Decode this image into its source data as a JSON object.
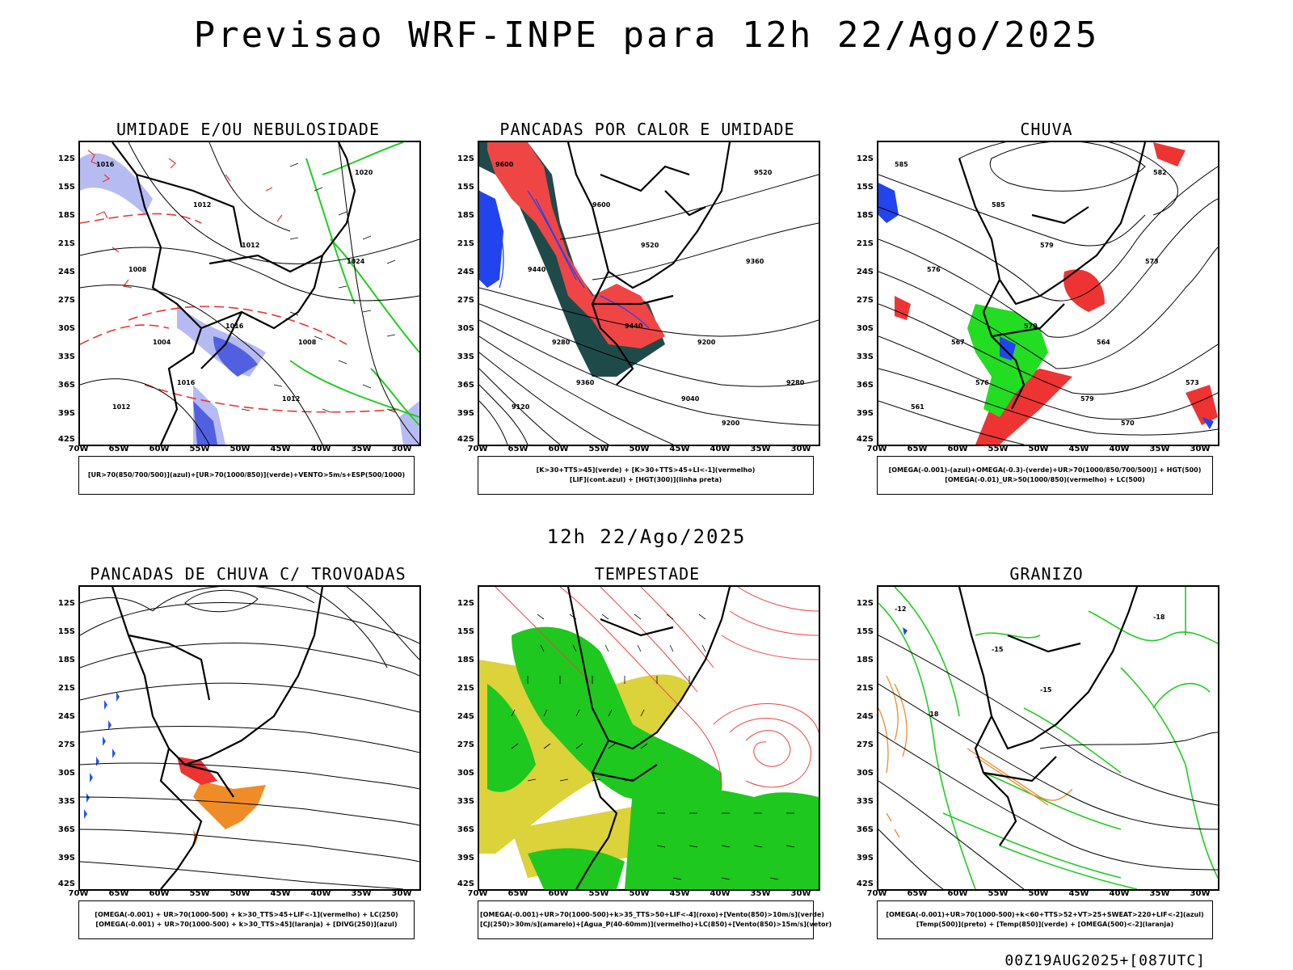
{
  "main_title": "Previsao WRF-INPE  para 12h 22/Ago/2025",
  "mid_title": "12h 22/Ago/2025",
  "footer": "00Z19AUG2025+[087UTC]",
  "lat_labels": [
    "12S",
    "15S",
    "18S",
    "21S",
    "24S",
    "27S",
    "30S",
    "33S",
    "36S",
    "39S",
    "42S"
  ],
  "lon_labels": [
    "70W",
    "65W",
    "60W",
    "55W",
    "50W",
    "45W",
    "40W",
    "35W",
    "30W"
  ],
  "panels": [
    {
      "title": "UMIDADE E/OU NEBULOSIDADE",
      "legend": [
        "[UR>70(850/700/500)](azul)+[UR>70(1000/850)](verde)+VENTO>5m/s+ESP(500/1000)"
      ],
      "contour_labels": [
        "1016",
        "1012",
        "1020",
        "1012",
        "1008",
        "1024",
        "1016",
        "1004",
        "1008",
        "1012",
        "1012",
        "1016"
      ],
      "colors": {
        "blue": "#a9b0f0",
        "green": "#22cc22",
        "red": "#ee3333"
      }
    },
    {
      "title": "PANCADAS POR CALOR E UMIDADE",
      "legend": [
        "[K>30+TTS>45](verde) + [K>30+TTS>45+LI<-1](vermelho)",
        "[LIF](cont.azul) + [HGT(300)](linha preta)"
      ],
      "contour_labels": [
        "9600",
        "9600",
        "9520",
        "9520",
        "9440",
        "9360",
        "9440",
        "9280",
        "9200",
        "9120",
        "9040",
        "9360",
        "9280",
        "9200"
      ],
      "colors": {
        "red": "#f04545",
        "dark": "#1f4a4a",
        "blue": "#2244ee"
      }
    },
    {
      "title": "CHUVA",
      "legend": [
        "[OMEGA(-0.001)-(azul)+OMEGA(-0.3)-(verde)+UR>70(1000/850/700/500)] + HGT(500)",
        "[OMEGA(-0.01)_UR>50(1000/850)(vermelho) + LC(500)"
      ],
      "contour_labels": [
        "585",
        "585",
        "582",
        "579",
        "576",
        "573",
        "570",
        "567",
        "564",
        "561",
        "579",
        "576",
        "573",
        "570"
      ],
      "colors": {
        "red": "#ee3333",
        "green": "#22dd22",
        "blue": "#2244ee"
      }
    },
    {
      "title": "PANCADAS DE CHUVA C/ TROVOADAS",
      "legend": [
        "[OMEGA(-0.001) + UR>70(1000-500) + k>30_TTS>45+LIF<-1](vermelho) + LC(250)",
        "[OMEGA(-0.001) + UR>70(1000-500) + k>30_TTS>45](laranja) + [DIVG(250)](azul)"
      ],
      "contour_labels": [],
      "colors": {
        "red": "#ee3333",
        "orange": "#f08c28",
        "blue": "#2255ee"
      }
    },
    {
      "title": "TEMPESTADE",
      "legend": [
        "[OMEGA(-0.001)+UR>70(1000-500)+k>35_TTS>50+LIF<-4](roxo)+[Vento(850)>10m/s](verde)",
        "[CJ(250)>30m/s](amarelo)+[Agua_P(40-60mm)](vermelho)+LC(850)+[Vento(850)>15m/s](vetor)"
      ],
      "contour_labels": [],
      "colors": {
        "yellow": "#dcd23a",
        "green": "#1ec81e",
        "red": "#ee4444"
      }
    },
    {
      "title": "GRANIZO",
      "legend": [
        "[OMEGA(-0.001)+UR>70(1000-500)+k<60+TTS>52+VT>25+SWEAT>220+LIF<-2](azul)",
        "[Temp(500)](preto) + [Temp(850)](verde) + [OMEGA(500)<-2](laranja)"
      ],
      "contour_labels": [
        "-12",
        "-15",
        "-18",
        "-15",
        "-18"
      ],
      "colors": {
        "green": "#22cc22",
        "orange": "#f08c28",
        "blue": "#2244ee"
      }
    }
  ]
}
